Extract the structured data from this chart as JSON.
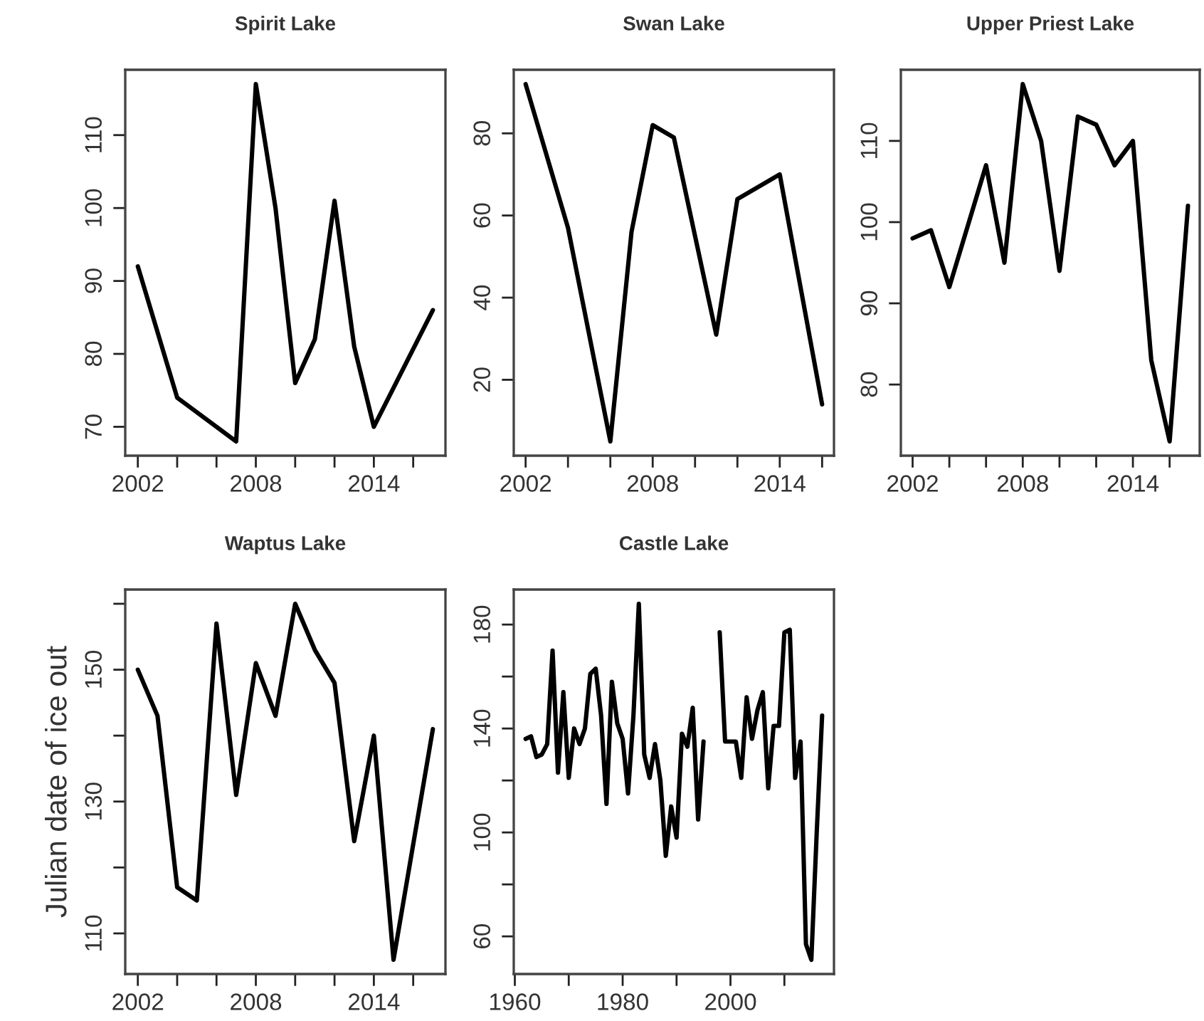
{
  "chart_data": [
    {
      "type": "line",
      "title": "Spirit Lake",
      "x": [
        2002,
        2004,
        2007,
        2008,
        2009,
        2010,
        2011,
        2012,
        2013,
        2014,
        2017
      ],
      "series": [
        {
          "color": "#000000",
          "values": [
            92,
            74,
            68,
            117,
            100,
            76,
            82,
            101,
            81,
            70,
            86
          ]
        }
      ],
      "xlim": [
        2001.36,
        2017.64
      ],
      "xticks": [
        2002,
        {
          "value": 2004,
          "label": null
        },
        {
          "value": 2006,
          "label": null
        },
        2008,
        {
          "value": 2010,
          "label": null
        },
        {
          "value": 2012,
          "label": null
        },
        2014,
        {
          "value": 2016,
          "label": null
        }
      ],
      "ylim": [
        66.04,
        118.96
      ],
      "yticks": [
        70,
        80,
        90,
        100,
        110
      ]
    },
    {
      "type": "line",
      "title": "Swan Lake",
      "x": [
        2002,
        2004,
        2006,
        2007,
        2008,
        2009,
        2011,
        2012,
        2014,
        2016
      ],
      "series": [
        {
          "color": "#000000",
          "values": [
            92,
            57,
            5,
            56,
            82,
            79,
            31,
            64,
            70,
            14
          ]
        }
      ],
      "xlim": [
        2001.44,
        2016.56
      ],
      "xticks": [
        2002,
        {
          "value": 2004,
          "label": null
        },
        {
          "value": 2006,
          "label": null
        },
        2008,
        {
          "value": 2010,
          "label": null
        },
        {
          "value": 2012,
          "label": null
        },
        2014,
        {
          "value": 2016,
          "label": null
        }
      ],
      "ylim": [
        1.52,
        95.48
      ],
      "yticks": [
        20,
        40,
        60,
        80
      ]
    },
    {
      "type": "line",
      "title": "Upper Priest Lake",
      "x": [
        2002,
        2003,
        2004,
        2006,
        2007,
        2008,
        2009,
        2010,
        2011,
        2012,
        2013,
        2014,
        2015,
        2016,
        2017
      ],
      "series": [
        {
          "color": "#000000",
          "values": [
            98,
            99,
            92,
            107,
            95,
            117,
            110,
            94,
            113,
            112,
            107,
            110,
            83,
            73,
            102
          ]
        }
      ],
      "xlim": [
        2001.36,
        2017.64
      ],
      "xticks": [
        2002,
        {
          "value": 2004,
          "label": null
        },
        {
          "value": 2006,
          "label": null
        },
        2008,
        {
          "value": 2010,
          "label": null
        },
        {
          "value": 2012,
          "label": null
        },
        2014,
        {
          "value": 2016,
          "label": null
        }
      ],
      "ylim": [
        71.24,
        118.76
      ],
      "yticks": [
        80,
        90,
        100,
        110
      ]
    },
    {
      "type": "line",
      "title": "Waptus Lake",
      "ylabel": "Julian date of ice out",
      "x": [
        2002,
        2003,
        2004,
        2005,
        2006,
        2007,
        2008,
        2009,
        2010,
        2011,
        2012,
        2013,
        2014,
        2015,
        2017
      ],
      "series": [
        {
          "color": "#000000",
          "values": [
            150,
            143,
            117,
            115,
            157,
            131,
            151,
            143,
            160,
            153,
            148,
            124,
            140,
            106,
            141
          ]
        }
      ],
      "xlim": [
        2001.36,
        2017.64
      ],
      "xticks": [
        2002,
        {
          "value": 2004,
          "label": null
        },
        {
          "value": 2006,
          "label": null
        },
        2008,
        {
          "value": 2010,
          "label": null
        },
        {
          "value": 2012,
          "label": null
        },
        2014,
        {
          "value": 2016,
          "label": null
        }
      ],
      "ylim": [
        103.84,
        162.16
      ],
      "yticks": [
        110,
        {
          "value": 120,
          "label": null
        },
        130,
        {
          "value": 140,
          "label": null
        },
        150,
        {
          "value": 160,
          "label": null
        }
      ]
    },
    {
      "type": "line",
      "title": "Castle Lake",
      "x": [
        1962,
        1963,
        1964,
        1965,
        1966,
        1967,
        1968,
        1969,
        1970,
        1971,
        1972,
        1973,
        1974,
        1975,
        1976,
        1977,
        1978,
        1979,
        1980,
        1981,
        1982,
        1983,
        1984,
        1985,
        1986,
        1987,
        1988,
        1989,
        1990,
        1991,
        1992,
        1993,
        1994,
        1995,
        1996,
        1997,
        1998,
        1999,
        2000,
        2001,
        2002,
        2003,
        2004,
        2005,
        2006,
        2007,
        2008,
        2009,
        2010,
        2011,
        2012,
        2013,
        2014,
        2015,
        2016,
        2017
      ],
      "series": [
        {
          "color": "#000000",
          "values": [
            136,
            137,
            129,
            130,
            134,
            170,
            123,
            154,
            121,
            140,
            134,
            140,
            161,
            163,
            145,
            111,
            158,
            142,
            136,
            115,
            145,
            188,
            130,
            121,
            134,
            120,
            91,
            110,
            98,
            138,
            133,
            148,
            105,
            135,
            null,
            null,
            177,
            135,
            135,
            135,
            121,
            152,
            136,
            147,
            154,
            117,
            141,
            141,
            177,
            178,
            121,
            135,
            57,
            51,
            100,
            145
          ]
        }
      ],
      "xlim": [
        1959.8,
        2019.2
      ],
      "xticks": [
        1960,
        {
          "value": 1970,
          "label": null
        },
        1980,
        {
          "value": 1990,
          "label": null
        },
        2000,
        {
          "value": 2010,
          "label": null
        }
      ],
      "ylim": [
        45.52,
        193.48
      ],
      "yticks": [
        60,
        {
          "value": 80,
          "label": null
        },
        100,
        {
          "value": 120,
          "label": null
        },
        140,
        {
          "value": 160,
          "label": null
        },
        180
      ]
    }
  ]
}
